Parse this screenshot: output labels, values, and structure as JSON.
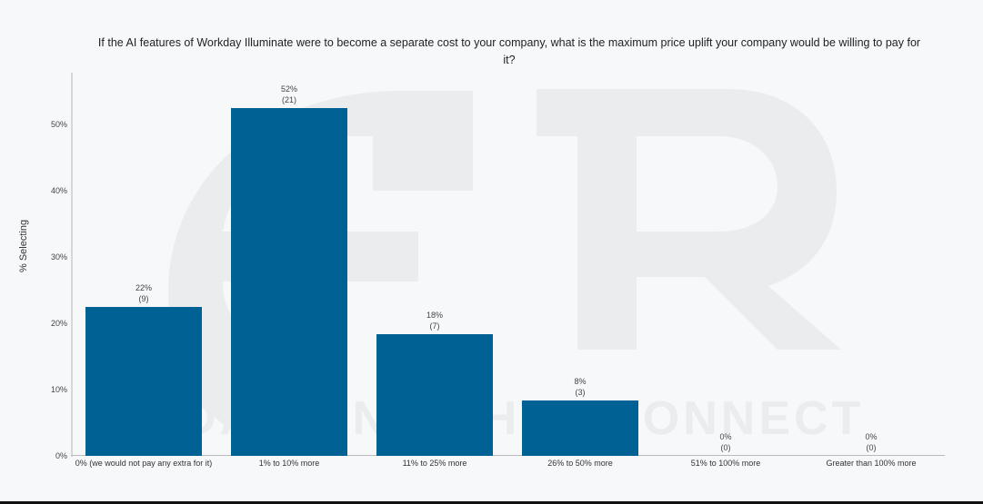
{
  "chart_data": {
    "type": "bar",
    "title": "If the AI features of Workday Illuminate were to become a separate cost to your company, what is the maximum price uplift your company would be willing to pay for it?",
    "xlabel": "",
    "ylabel": "% Selecting",
    "categories": [
      "0% (we would not pay any extra for it)",
      "1% to 10% more",
      "11% to 25% more",
      "26% to 50% more",
      "51% to 100% more",
      "Greater than 100% more"
    ],
    "values": [
      22,
      52,
      18,
      8,
      0,
      0
    ],
    "counts": [
      9,
      21,
      7,
      3,
      0,
      0
    ],
    "value_labels": [
      "22%",
      "52%",
      "18%",
      "8%",
      "0%",
      "0%"
    ],
    "count_labels": [
      "(9)",
      "(21)",
      "(7)",
      "(3)",
      "(0)",
      "(0)"
    ],
    "yticks": [
      "0%",
      "10%",
      "20%",
      "30%",
      "40%",
      "50%"
    ],
    "ytick_values": [
      0,
      10,
      20,
      30,
      40,
      50
    ],
    "ylim": [
      0,
      57
    ],
    "grid": false,
    "legend": "none",
    "bar_color": "#006194"
  },
  "watermark": {
    "logo_text": "ETR",
    "tagline": "DATA INSIGHTS CONNECT"
  }
}
